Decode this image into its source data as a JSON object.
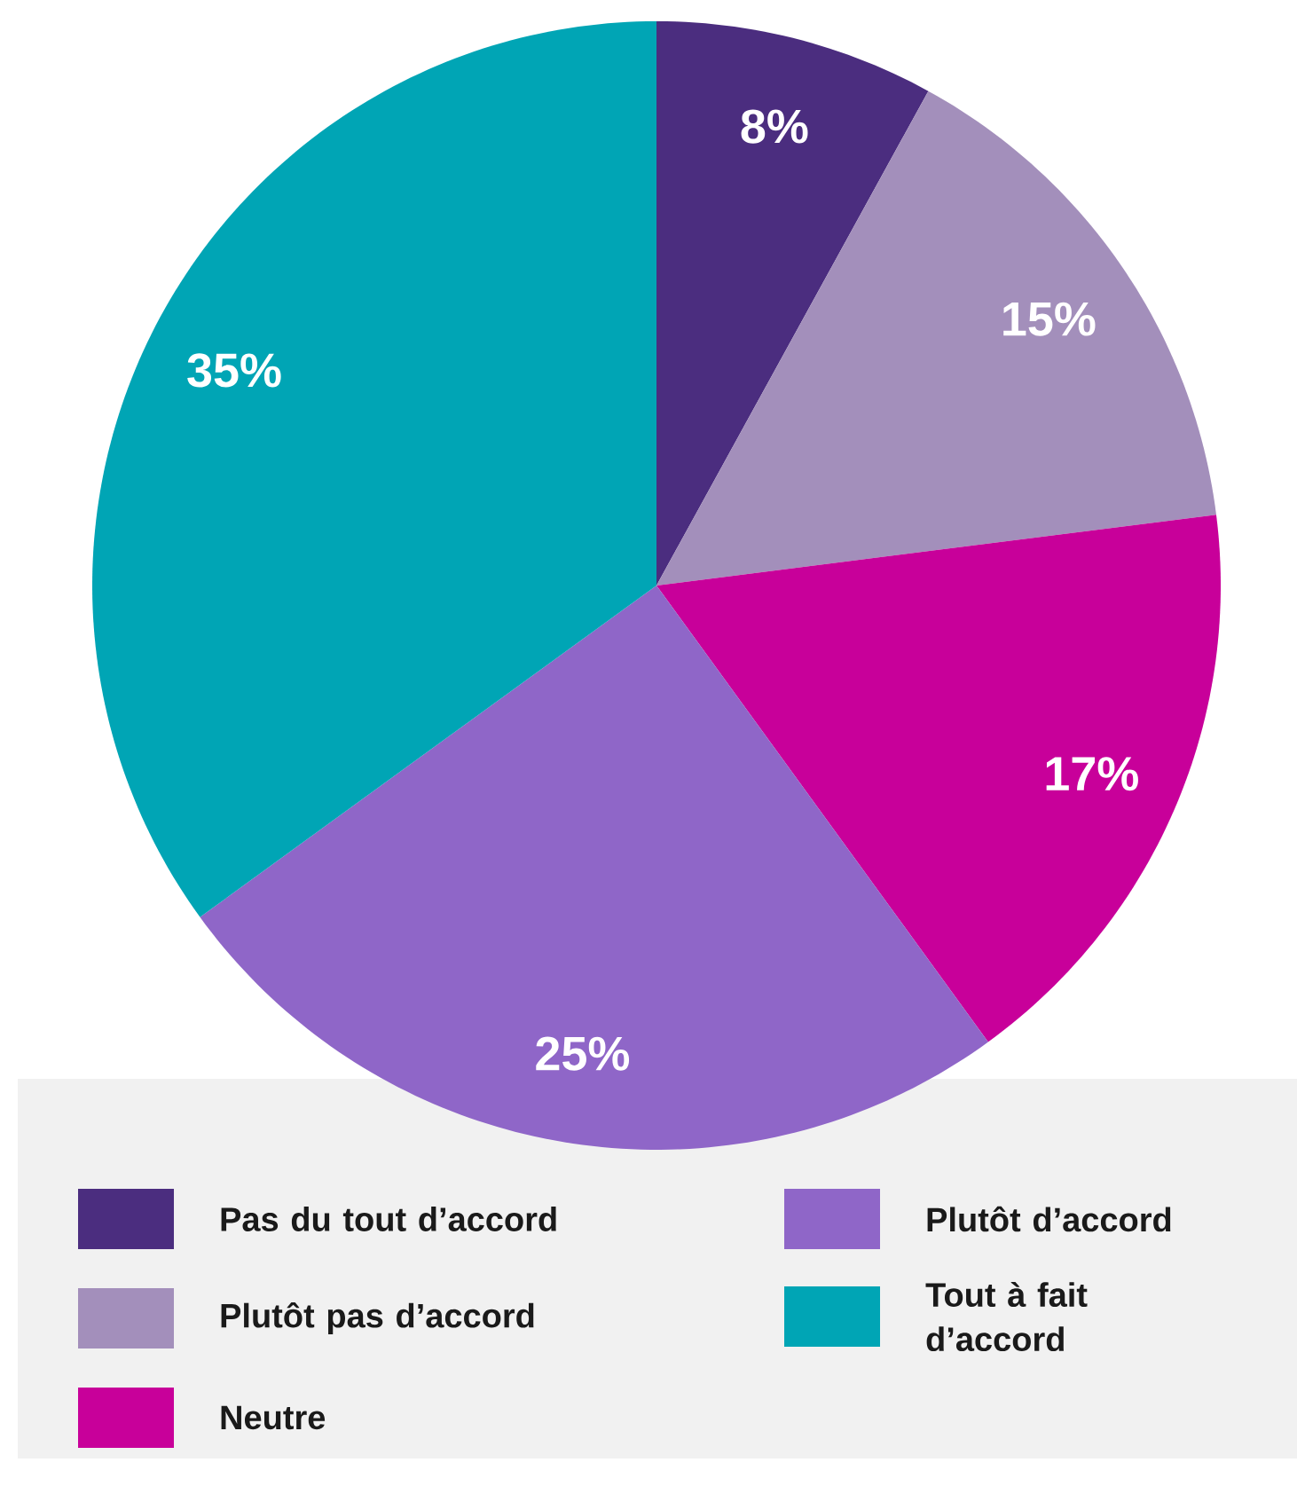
{
  "chart_data": {
    "type": "pie",
    "categories": [
      "Pas du tout d’accord",
      "Plutôt pas d’accord",
      "Neutre",
      "Plutôt d’accord",
      "Tout à fait d’accord"
    ],
    "values": [
      8,
      15,
      17,
      25,
      35
    ],
    "colors": [
      "#4b2d7f",
      "#a38fbb",
      "#c8009a",
      "#8f66c8",
      "#00a5b5"
    ],
    "value_labels": [
      "8%",
      "15%",
      "17%",
      "25%",
      "35%"
    ],
    "legend": "bottom"
  }
}
